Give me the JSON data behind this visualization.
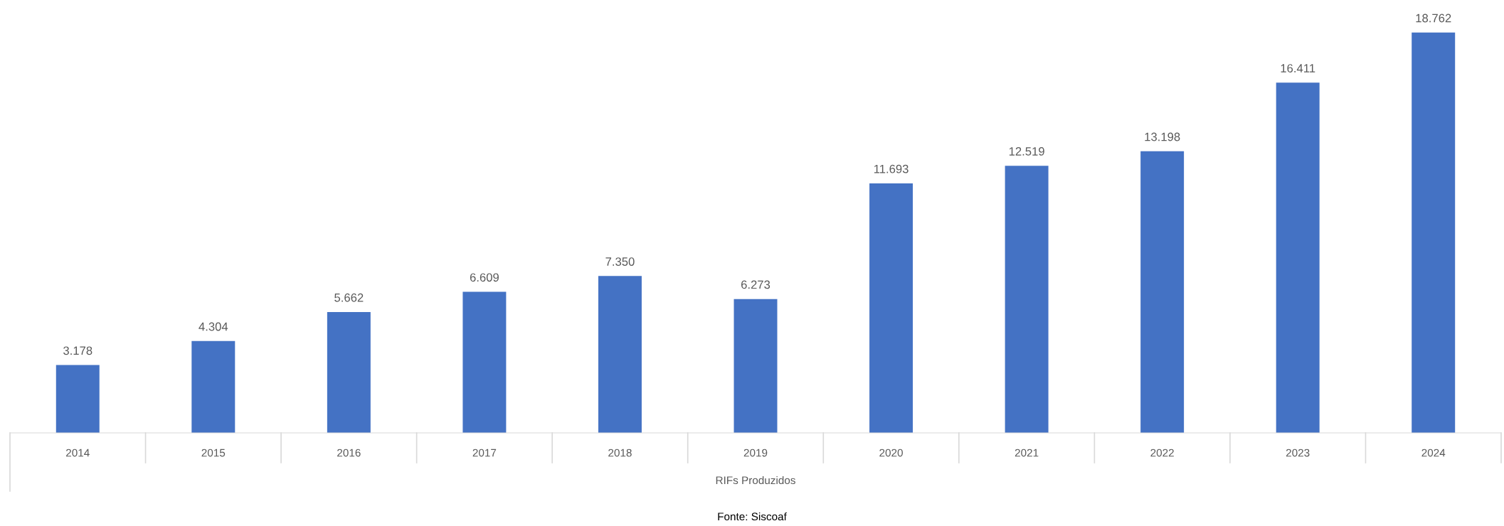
{
  "chart_data": {
    "type": "bar",
    "xlabel": "RIFs Produzidos",
    "categories": [
      "2014",
      "2015",
      "2016",
      "2017",
      "2018",
      "2019",
      "2020",
      "2021",
      "2022",
      "2023",
      "2024"
    ],
    "values": [
      3178,
      4304,
      5662,
      6609,
      7350,
      6273,
      11693,
      12519,
      13198,
      16411,
      18762
    ],
    "value_labels": [
      "3.178",
      "4.304",
      "5.662",
      "6.609",
      "7.350",
      "6.273",
      "11.693",
      "12.519",
      "13.198",
      "16.411",
      "18.762"
    ],
    "color": "#4472c4",
    "tick_labels": "x",
    "grid": false,
    "annotations": [
      "Fonte: Siscoaf"
    ]
  }
}
